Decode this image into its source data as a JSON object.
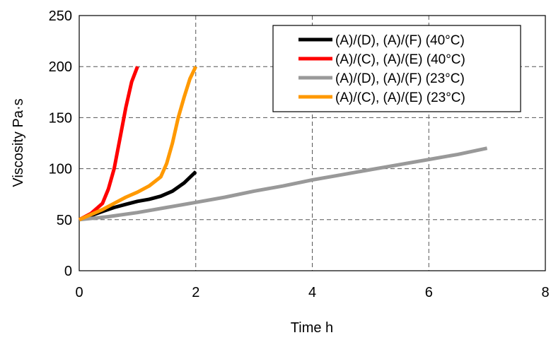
{
  "chart_data": {
    "type": "line",
    "title": "",
    "xlabel": "Time h",
    "ylabel": "Viscosity Pa·s",
    "xlim": [
      0,
      8
    ],
    "ylim": [
      0,
      250
    ],
    "xticks": [
      0,
      2,
      4,
      6,
      8
    ],
    "yticks": [
      0,
      50,
      100,
      150,
      200,
      250
    ],
    "grid": "dashed",
    "legend_position": "top-right",
    "series": [
      {
        "name": "(A)/(D), (A)/(F) (40°C)",
        "color": "#000000",
        "x": [
          0,
          0.2,
          0.4,
          0.6,
          0.8,
          1.0,
          1.2,
          1.4,
          1.6,
          1.8,
          2.0
        ],
        "y": [
          50,
          54,
          58,
          62,
          65,
          68,
          70,
          73,
          78,
          86,
          97
        ]
      },
      {
        "name": "(A)/(C), (A)/(E) (40°C)",
        "color": "#ff0000",
        "x": [
          0,
          0.2,
          0.4,
          0.5,
          0.6,
          0.7,
          0.8,
          0.9,
          1.0
        ],
        "y": [
          50,
          56,
          66,
          80,
          100,
          130,
          160,
          185,
          200
        ]
      },
      {
        "name": "(A)/(D), (A)/(F) (23°C)",
        "color": "#999999",
        "x": [
          0,
          0.5,
          1,
          1.5,
          2,
          2.5,
          3,
          3.5,
          4,
          4.5,
          5,
          5.5,
          6,
          6.5,
          7
        ],
        "y": [
          50,
          53,
          57,
          62,
          67,
          72,
          78,
          83,
          89,
          94,
          99,
          104,
          109,
          114,
          120
        ]
      },
      {
        "name": "(A)/(C), (A)/(E) (23°C)",
        "color": "#ff9900",
        "x": [
          0,
          0.2,
          0.4,
          0.6,
          0.8,
          1.0,
          1.2,
          1.4,
          1.5,
          1.6,
          1.7,
          1.8,
          1.9,
          2.0
        ],
        "y": [
          50,
          55,
          60,
          66,
          72,
          77,
          83,
          92,
          105,
          125,
          150,
          170,
          188,
          200
        ]
      }
    ]
  }
}
